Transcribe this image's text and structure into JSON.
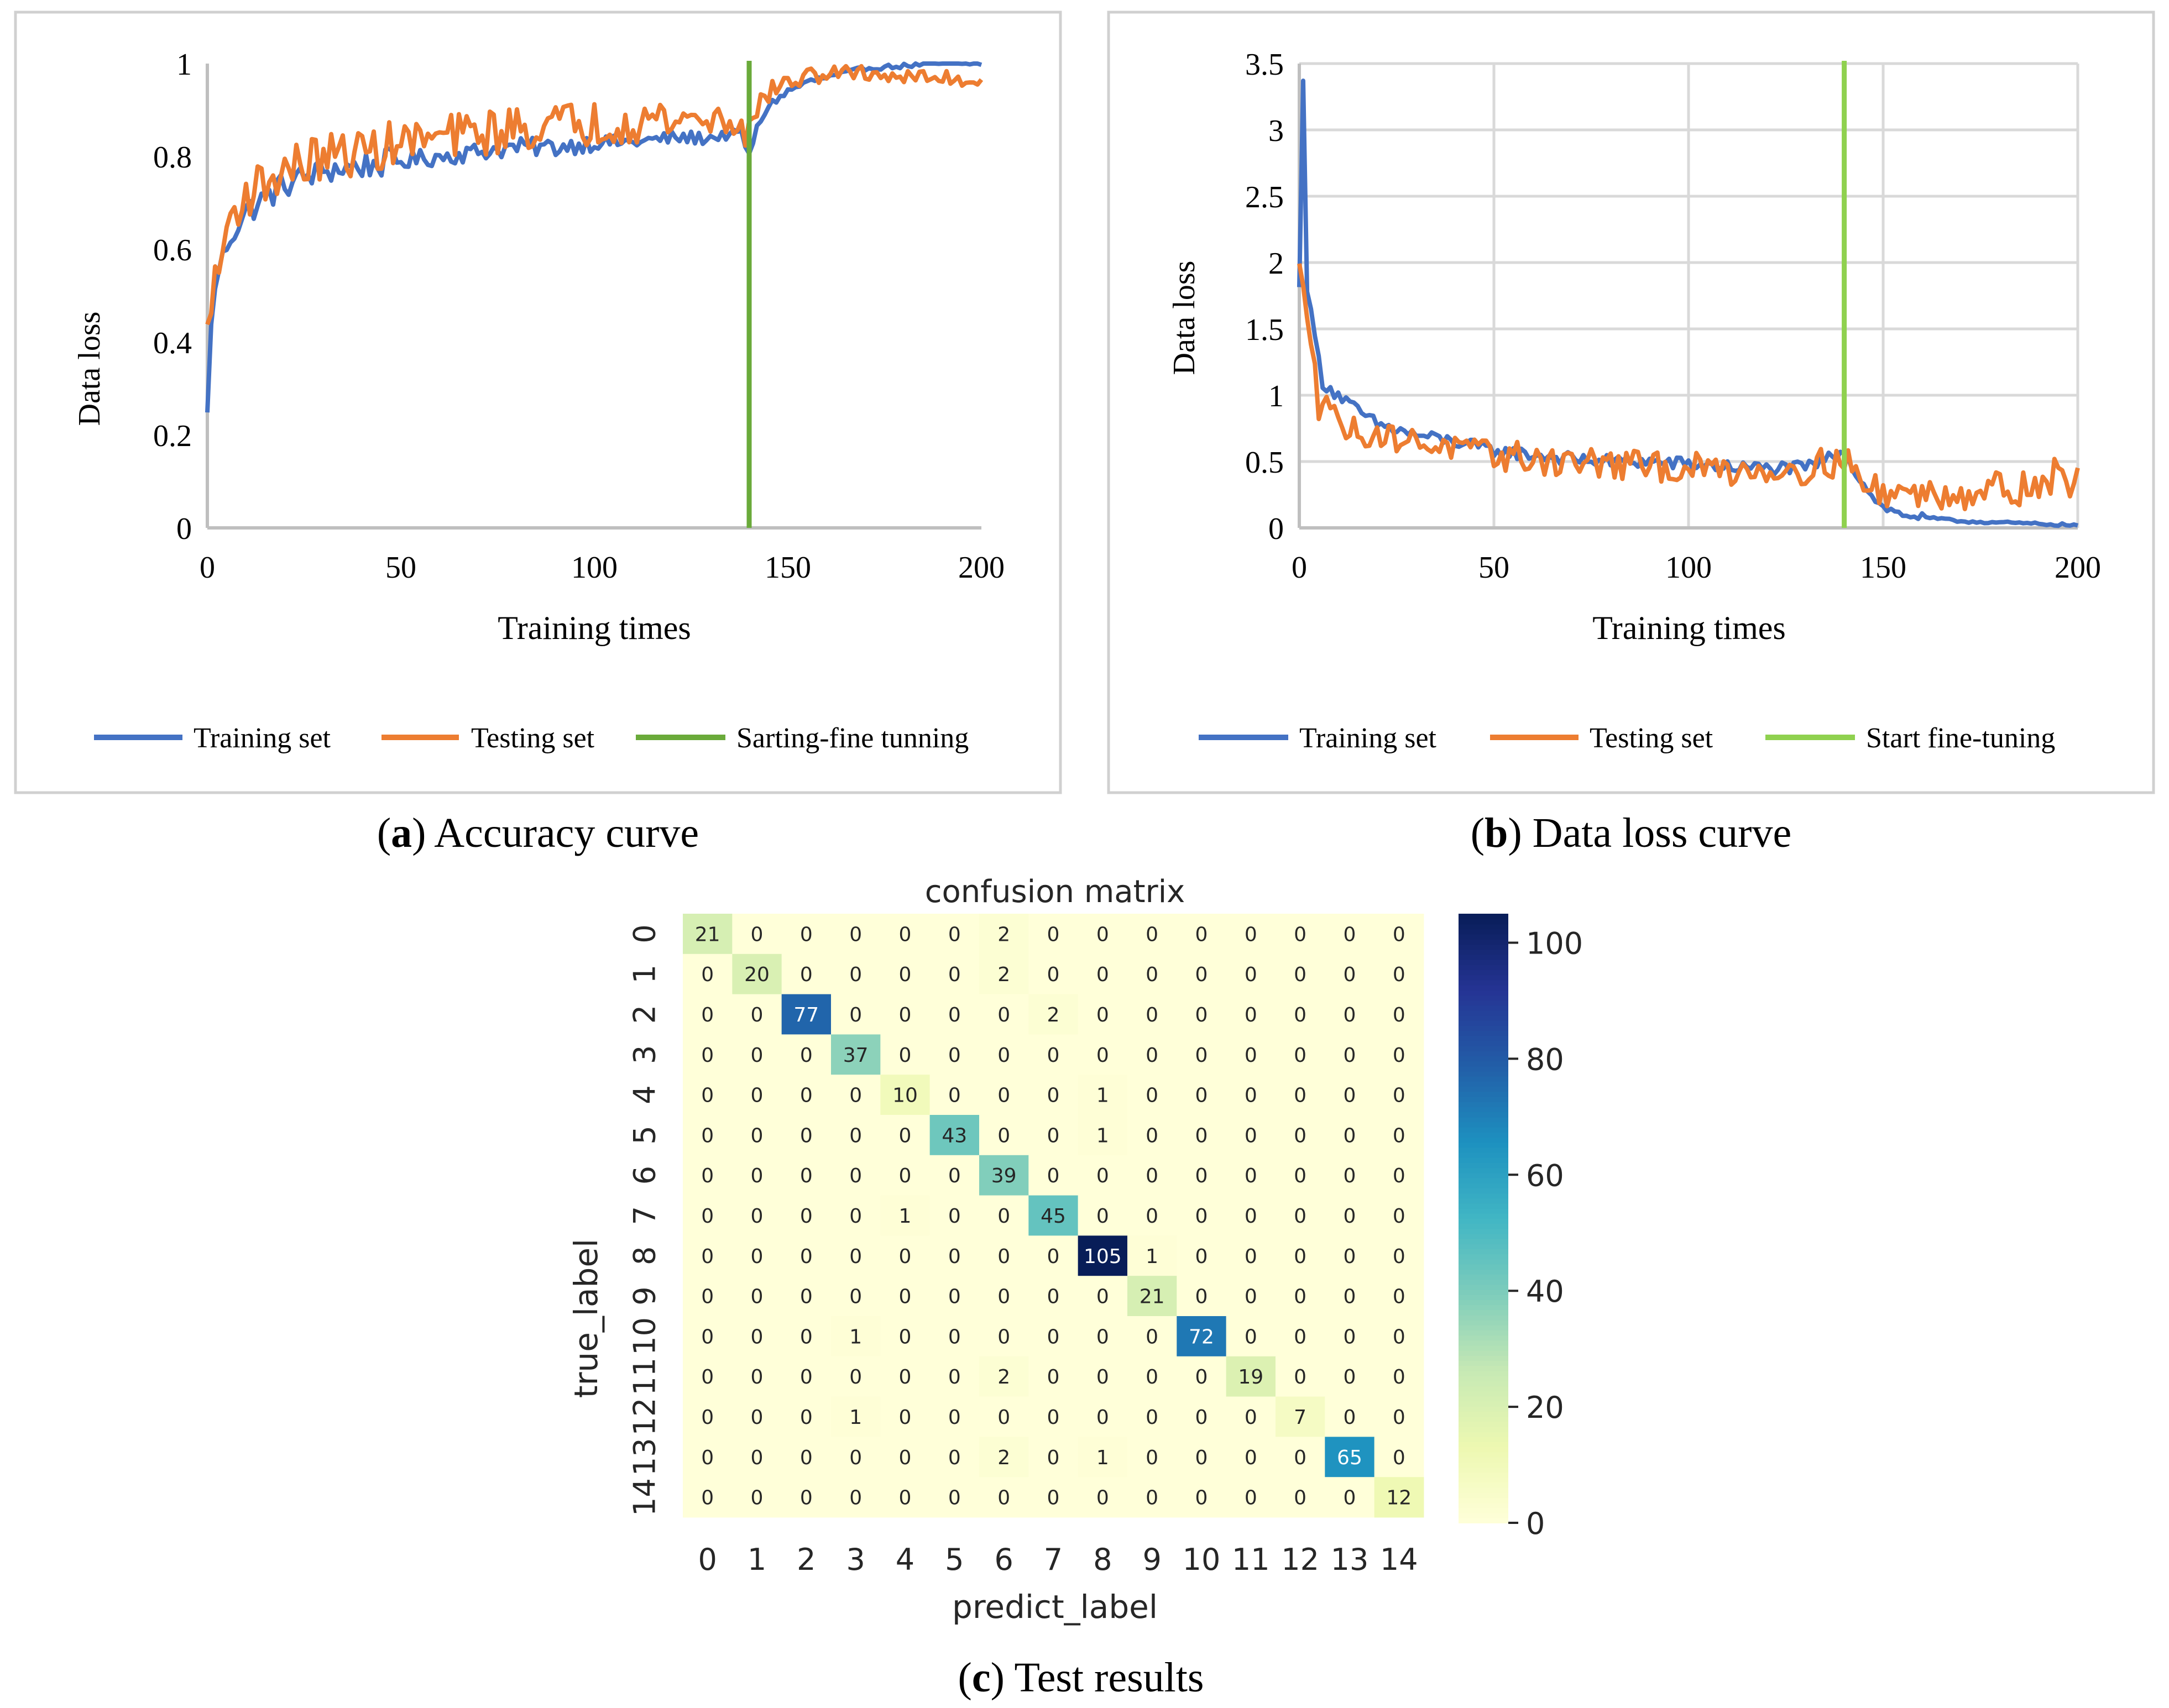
{
  "chart_data": [
    {
      "type": "line",
      "title": "",
      "xlabel": "Training times",
      "ylabel": "Data loss",
      "xlim": [
        0,
        200
      ],
      "ylim": [
        0,
        1
      ],
      "xticks": [
        "0",
        "50",
        "100",
        "150",
        "200"
      ],
      "yticks": [
        "0",
        "0.2",
        "0.4",
        "0.6",
        "0.8",
        "1"
      ],
      "grid": false,
      "legend_position": "bottom",
      "caption_letter": "a",
      "caption_text": ") Accuracy curve",
      "caption_open": "(",
      "vline": {
        "name": "Sarting-fine tunning",
        "x": 140,
        "color": "#6aaa3a"
      },
      "series": [
        {
          "name": "Training set",
          "color": "#4472c4",
          "anchors": [
            [
              0,
              0.24
            ],
            [
              1,
              0.45
            ],
            [
              3,
              0.56
            ],
            [
              6,
              0.63
            ],
            [
              10,
              0.68
            ],
            [
              15,
              0.71
            ],
            [
              20,
              0.74
            ],
            [
              30,
              0.77
            ],
            [
              40,
              0.78
            ],
            [
              50,
              0.79
            ],
            [
              60,
              0.8
            ],
            [
              70,
              0.81
            ],
            [
              80,
              0.82
            ],
            [
              90,
              0.82
            ],
            [
              100,
              0.83
            ],
            [
              110,
              0.83
            ],
            [
              120,
              0.84
            ],
            [
              130,
              0.84
            ],
            [
              138,
              0.85
            ],
            [
              140,
              0.8
            ],
            [
              142,
              0.86
            ],
            [
              145,
              0.91
            ],
            [
              150,
              0.94
            ],
            [
              155,
              0.96
            ],
            [
              160,
              0.97
            ],
            [
              165,
              0.98
            ],
            [
              170,
              0.99
            ],
            [
              180,
              0.995
            ],
            [
              190,
              1.0
            ],
            [
              200,
              1.0
            ]
          ],
          "noise": [
            0.02,
            0.03,
            0.02,
            0.015,
            0.01,
            0.008,
            0.005
          ]
        },
        {
          "name": "Testing set",
          "color": "#ed7d31",
          "anchors": [
            [
              0,
              0.42
            ],
            [
              1,
              0.5
            ],
            [
              3,
              0.55
            ],
            [
              5,
              0.65
            ],
            [
              8,
              0.7
            ],
            [
              12,
              0.73
            ],
            [
              20,
              0.77
            ],
            [
              30,
              0.8
            ],
            [
              40,
              0.81
            ],
            [
              50,
              0.83
            ],
            [
              60,
              0.84
            ],
            [
              70,
              0.85
            ],
            [
              80,
              0.86
            ],
            [
              90,
              0.87
            ],
            [
              100,
              0.87
            ],
            [
              110,
              0.88
            ],
            [
              120,
              0.88
            ],
            [
              130,
              0.88
            ],
            [
              138,
              0.88
            ],
            [
              140,
              0.85
            ],
            [
              143,
              0.92
            ],
            [
              147,
              0.95
            ],
            [
              150,
              0.96
            ],
            [
              160,
              0.98
            ],
            [
              170,
              0.98
            ],
            [
              180,
              0.97
            ],
            [
              190,
              0.97
            ],
            [
              200,
              0.96
            ]
          ],
          "noise": [
            0.04,
            0.05,
            0.05,
            0.05,
            0.05,
            0.02,
            0.015
          ]
        }
      ]
    },
    {
      "type": "line",
      "title": "",
      "xlabel": "Training times",
      "ylabel": "Data loss",
      "xlim": [
        0,
        200
      ],
      "ylim": [
        0,
        3.5
      ],
      "xticks": [
        "0",
        "50",
        "100",
        "150",
        "200"
      ],
      "yticks": [
        "0",
        "0.5",
        "1",
        "1.5",
        "2",
        "2.5",
        "3",
        "3.5"
      ],
      "grid": true,
      "legend_position": "bottom",
      "caption_letter": "b",
      "caption_text": ") Data loss curve",
      "caption_open": "(",
      "vline": {
        "name": "Start fine-tuning",
        "x": 140,
        "color": "#8fd14f"
      },
      "series": [
        {
          "name": "Training set",
          "color": "#4472c4",
          "anchors": [
            [
              0,
              1.8
            ],
            [
              1,
              3.4
            ],
            [
              2,
              1.8
            ],
            [
              4,
              1.45
            ],
            [
              6,
              1.1
            ],
            [
              10,
              1.0
            ],
            [
              15,
              0.88
            ],
            [
              20,
              0.78
            ],
            [
              30,
              0.7
            ],
            [
              40,
              0.65
            ],
            [
              50,
              0.58
            ],
            [
              60,
              0.55
            ],
            [
              70,
              0.52
            ],
            [
              80,
              0.5
            ],
            [
              90,
              0.5
            ],
            [
              100,
              0.48
            ],
            [
              110,
              0.46
            ],
            [
              120,
              0.45
            ],
            [
              130,
              0.45
            ],
            [
              138,
              0.55
            ],
            [
              140,
              0.6
            ],
            [
              143,
              0.4
            ],
            [
              147,
              0.25
            ],
            [
              150,
              0.15
            ],
            [
              155,
              0.1
            ],
            [
              160,
              0.08
            ],
            [
              170,
              0.05
            ],
            [
              180,
              0.04
            ],
            [
              190,
              0.03
            ],
            [
              200,
              0.02
            ]
          ],
          "noise": [
            0.03,
            0.05,
            0.05,
            0.05,
            0.05,
            0.03,
            0.01
          ]
        },
        {
          "name": "Testing set",
          "color": "#ed7d31",
          "anchors": [
            [
              0,
              1.95
            ],
            [
              2,
              1.6
            ],
            [
              4,
              1.3
            ],
            [
              5,
              0.9
            ],
            [
              7,
              1.0
            ],
            [
              10,
              0.78
            ],
            [
              15,
              0.72
            ],
            [
              20,
              0.7
            ],
            [
              30,
              0.65
            ],
            [
              40,
              0.6
            ],
            [
              50,
              0.55
            ],
            [
              60,
              0.52
            ],
            [
              70,
              0.5
            ],
            [
              80,
              0.48
            ],
            [
              90,
              0.46
            ],
            [
              100,
              0.45
            ],
            [
              110,
              0.44
            ],
            [
              120,
              0.44
            ],
            [
              130,
              0.45
            ],
            [
              138,
              0.5
            ],
            [
              140,
              0.55
            ],
            [
              145,
              0.3
            ],
            [
              150,
              0.28
            ],
            [
              160,
              0.25
            ],
            [
              170,
              0.28
            ],
            [
              180,
              0.3
            ],
            [
              190,
              0.32
            ],
            [
              195,
              0.4
            ],
            [
              200,
              0.35
            ]
          ],
          "noise": [
            0.08,
            0.1,
            0.12,
            0.12,
            0.12,
            0.12,
            0.14
          ]
        }
      ]
    },
    {
      "type": "heatmap",
      "title": "confusion matrix",
      "xlabel": "predict_label",
      "ylabel": "true_label",
      "labels": [
        "0",
        "1",
        "2",
        "3",
        "4",
        "5",
        "6",
        "7",
        "8",
        "9",
        "10",
        "11",
        "12",
        "13",
        "14"
      ],
      "matrix": [
        [
          21,
          0,
          0,
          0,
          0,
          0,
          2,
          0,
          0,
          0,
          0,
          0,
          0,
          0,
          0
        ],
        [
          0,
          20,
          0,
          0,
          0,
          0,
          2,
          0,
          0,
          0,
          0,
          0,
          0,
          0,
          0
        ],
        [
          0,
          0,
          77,
          0,
          0,
          0,
          0,
          2,
          0,
          0,
          0,
          0,
          0,
          0,
          0
        ],
        [
          0,
          0,
          0,
          37,
          0,
          0,
          0,
          0,
          0,
          0,
          0,
          0,
          0,
          0,
          0
        ],
        [
          0,
          0,
          0,
          0,
          10,
          0,
          0,
          0,
          1,
          0,
          0,
          0,
          0,
          0,
          0
        ],
        [
          0,
          0,
          0,
          0,
          0,
          43,
          0,
          0,
          1,
          0,
          0,
          0,
          0,
          0,
          0
        ],
        [
          0,
          0,
          0,
          0,
          0,
          0,
          39,
          0,
          0,
          0,
          0,
          0,
          0,
          0,
          0
        ],
        [
          0,
          0,
          0,
          0,
          1,
          0,
          0,
          45,
          0,
          0,
          0,
          0,
          0,
          0,
          0
        ],
        [
          0,
          0,
          0,
          0,
          0,
          0,
          0,
          0,
          105,
          1,
          0,
          0,
          0,
          0,
          0
        ],
        [
          0,
          0,
          0,
          0,
          0,
          0,
          0,
          0,
          0,
          21,
          0,
          0,
          0,
          0,
          0
        ],
        [
          0,
          0,
          0,
          1,
          0,
          0,
          0,
          0,
          0,
          0,
          72,
          0,
          0,
          0,
          0
        ],
        [
          0,
          0,
          0,
          0,
          0,
          0,
          2,
          0,
          0,
          0,
          0,
          19,
          0,
          0,
          0
        ],
        [
          0,
          0,
          0,
          1,
          0,
          0,
          0,
          0,
          0,
          0,
          0,
          0,
          7,
          0,
          0
        ],
        [
          0,
          0,
          0,
          0,
          0,
          0,
          2,
          0,
          1,
          0,
          0,
          0,
          0,
          65,
          0
        ],
        [
          0,
          0,
          0,
          0,
          0,
          0,
          0,
          0,
          0,
          0,
          0,
          0,
          0,
          0,
          12
        ]
      ],
      "vmin": 0,
      "vmax": 105,
      "colorbar_ticks": [
        "0",
        "20",
        "40",
        "60",
        "80",
        "100"
      ],
      "colormap": "YlGnBu",
      "caption_open": "(",
      "caption_letter": "c",
      "caption_text": ") Test results"
    }
  ]
}
